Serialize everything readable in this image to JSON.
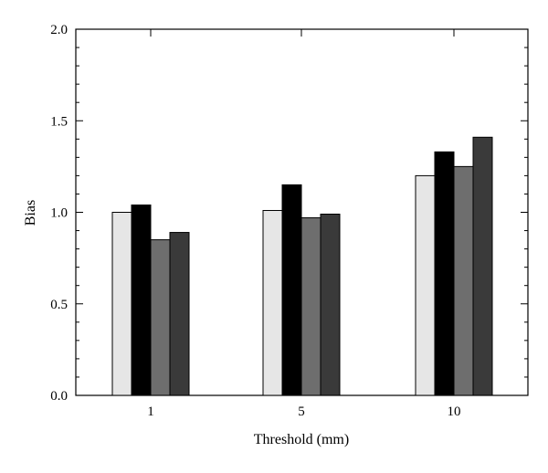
{
  "chart_data": {
    "type": "bar",
    "xlabel": "Threshold (mm)",
    "ylabel": "Bias",
    "categories": [
      "1",
      "5",
      "10"
    ],
    "ylim": [
      0,
      2
    ],
    "yticks": [
      "0.0",
      "0.5",
      "1.0",
      "1.5",
      "2.0"
    ],
    "series": [
      {
        "values": [
          1.0,
          1.01,
          1.2
        ],
        "color": "#e6e6e6"
      },
      {
        "values": [
          1.04,
          1.15,
          1.33
        ],
        "color": "#000000"
      },
      {
        "values": [
          0.85,
          0.97,
          1.25
        ],
        "color": "#6e6e6e"
      },
      {
        "values": [
          0.89,
          0.99,
          1.41
        ],
        "color": "#3a3a3a"
      }
    ],
    "grid": false,
    "legend": "none"
  }
}
